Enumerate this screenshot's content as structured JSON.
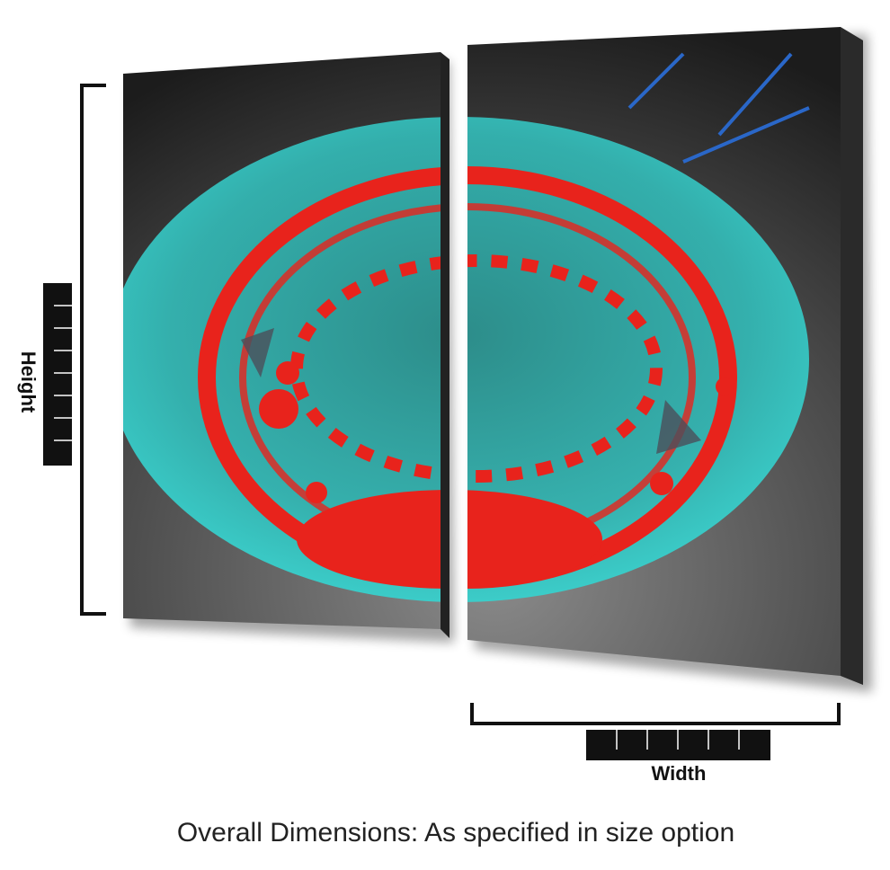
{
  "labels": {
    "height": "Height",
    "width": "Width"
  },
  "caption": "Overall Dimensions: As specified in size option"
}
